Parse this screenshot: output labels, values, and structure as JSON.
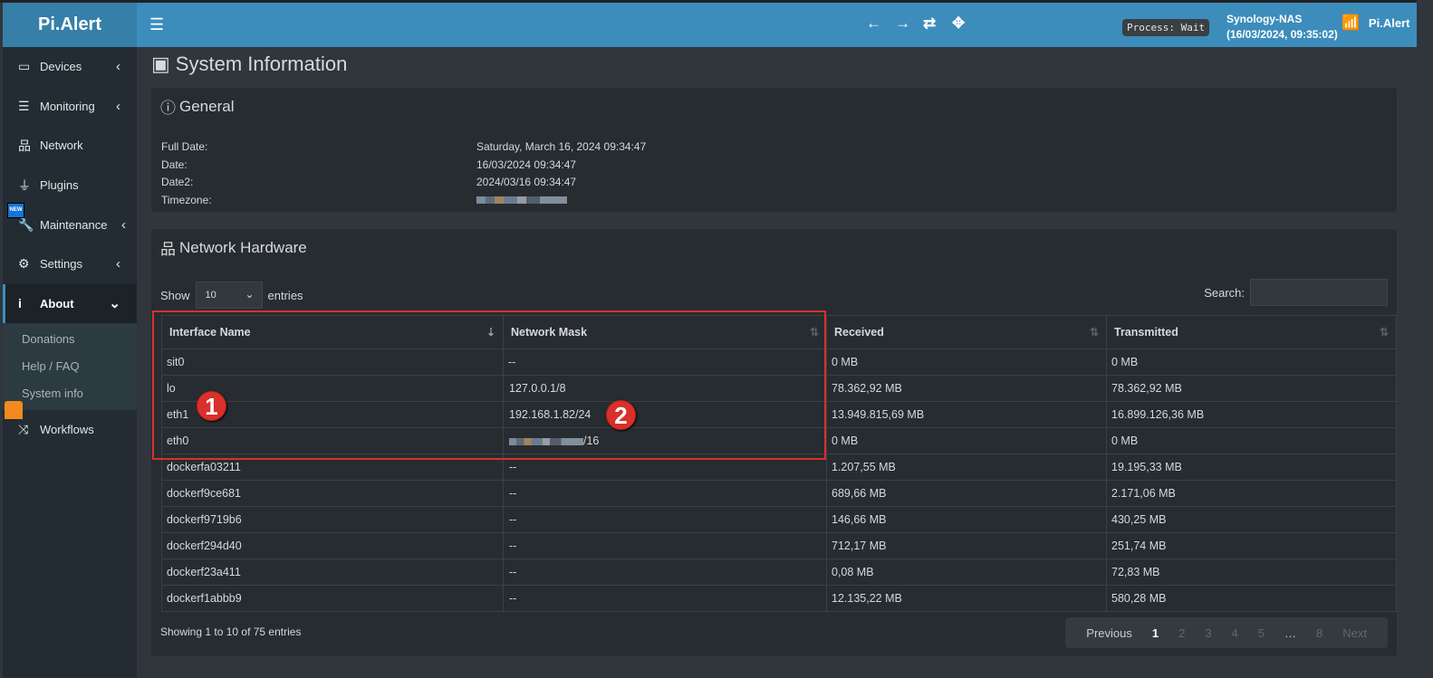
{
  "app": {
    "logo": "Pi.Alert"
  },
  "header": {
    "process": "Process: Wait",
    "host": "Synology-NAS",
    "host_time": "(16/03/2024, 09:35:02)",
    "user": "Pi.Alert"
  },
  "sidebar": {
    "items": [
      {
        "label": "Devices",
        "icon": "laptop-icon",
        "chev": "‹"
      },
      {
        "label": "Monitoring",
        "icon": "chart-icon",
        "chev": "‹"
      },
      {
        "label": "Network",
        "icon": "sitemap-icon"
      },
      {
        "label": "Plugins",
        "icon": "plug-icon"
      },
      {
        "label": "Maintenance",
        "icon": "wrench-icon",
        "chev": "‹"
      },
      {
        "label": "Settings",
        "icon": "gear-icon",
        "chev": "‹"
      },
      {
        "label": "About",
        "icon": "info-icon",
        "chev": "⌄"
      },
      {
        "label": "Workflows",
        "icon": "shuffle-icon"
      }
    ],
    "sub": [
      "Donations",
      "Help / FAQ",
      "System info"
    ],
    "new_badge": "NEW"
  },
  "page": {
    "title": "System Information"
  },
  "general": {
    "title": "General",
    "rows": [
      {
        "k": "Full Date:",
        "v": "Saturday, March 16, 2024 09:34:47"
      },
      {
        "k": "Date:",
        "v": "16/03/2024 09:34:47"
      },
      {
        "k": "Date2:",
        "v": "2024/03/16 09:34:47"
      },
      {
        "k": "Timezone:",
        "v": ""
      }
    ]
  },
  "network": {
    "title": "Network Hardware",
    "show": "Show",
    "entries": "entries",
    "length": "10",
    "search_label": "Search:",
    "columns": [
      "Interface Name",
      "Network Mask",
      "Received",
      "Transmitted"
    ],
    "rows": [
      [
        "sit0",
        "--",
        "0 MB",
        "0 MB"
      ],
      [
        "lo",
        "127.0.0.1/8",
        "78.362,92 MB",
        "78.362,92 MB"
      ],
      [
        "eth1",
        "192.168.1.82/24",
        "13.949.815,69 MB",
        "16.899.126,36 MB"
      ],
      [
        "eth0",
        "/16",
        "0 MB",
        "0 MB"
      ],
      [
        "dockerfa03211",
        "--",
        "1.207,55 MB",
        "19.195,33 MB"
      ],
      [
        "dockerf9ce681",
        "--",
        "689,66 MB",
        "2.171,06 MB"
      ],
      [
        "dockerf9719b6",
        "--",
        "146,66 MB",
        "430,25 MB"
      ],
      [
        "dockerf294d40",
        "--",
        "712,17 MB",
        "251,74 MB"
      ],
      [
        "dockerf23a411",
        "--",
        "0,08 MB",
        "72,83 MB"
      ],
      [
        "dockerf1abbb9",
        "--",
        "12.135,22 MB",
        "580,28 MB"
      ]
    ],
    "info": "Showing 1 to 10 of 75 entries",
    "pager": [
      "Previous",
      "1",
      "2",
      "3",
      "4",
      "5",
      "…",
      "8",
      "Next"
    ]
  },
  "annotations": [
    "1",
    "2"
  ],
  "colors": {
    "header": "#3c8dbc",
    "sidebar": "#222c32",
    "highlight": "#d9302c"
  }
}
